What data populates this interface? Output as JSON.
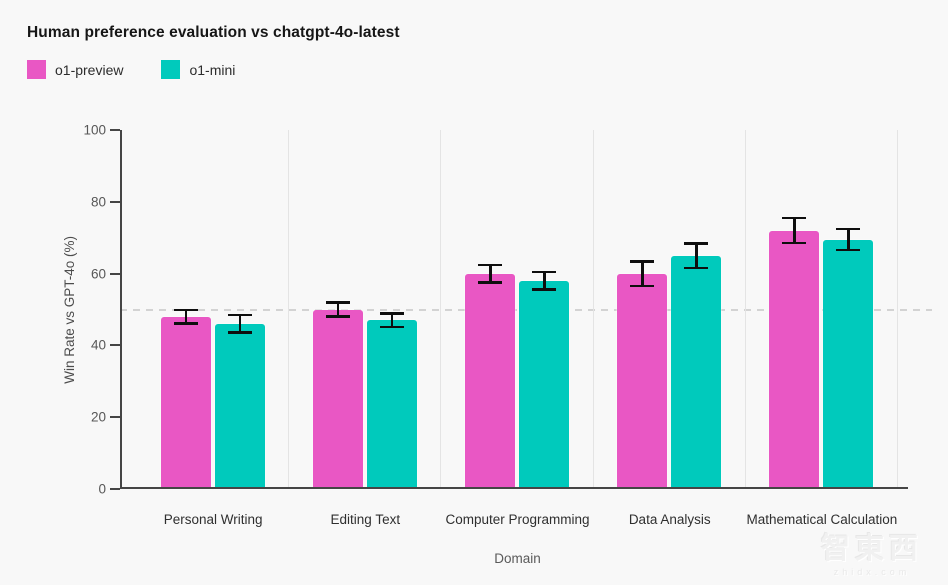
{
  "header": {
    "title": "Human preference evaluation vs chatgpt-4o-latest"
  },
  "watermark": {
    "logo": "智東西",
    "domain": "zhidx.com"
  },
  "colors": {
    "background": "#f8f8f8",
    "axis": "#454545",
    "grid": "#e4e4e4",
    "reference_dash": "#d3d3d3",
    "error_bar": "#0e0e0e",
    "o1_preview": "#e957c4",
    "o1_mini": "#00cabc"
  },
  "chart_data": {
    "type": "bar",
    "title": "Human preference evaluation vs chatgpt-4o-latest",
    "categories": [
      "Personal Writing",
      "Editing Text",
      "Computer Programming",
      "Data Analysis",
      "Mathematical Calculation"
    ],
    "series": [
      {
        "name": "o1-preview",
        "color": "#e957c4",
        "values": [
          48,
          50,
          60,
          60,
          72
        ],
        "errors": [
          2,
          2,
          2.5,
          3.5,
          3.5
        ]
      },
      {
        "name": "o1-mini",
        "color": "#00cabc",
        "values": [
          46,
          47,
          58,
          65,
          69.5
        ],
        "errors": [
          2.5,
          2,
          2.5,
          3.5,
          3
        ]
      }
    ],
    "xlabel": "Domain",
    "ylabel": "Win Rate vs GPT-4o (%)",
    "ylim": [
      0,
      100
    ],
    "yticks": [
      0,
      20,
      40,
      60,
      80,
      100
    ],
    "reference_line": 50,
    "grid": "vertical-group-separators",
    "legend_position": "top-left",
    "error_bars": true
  }
}
